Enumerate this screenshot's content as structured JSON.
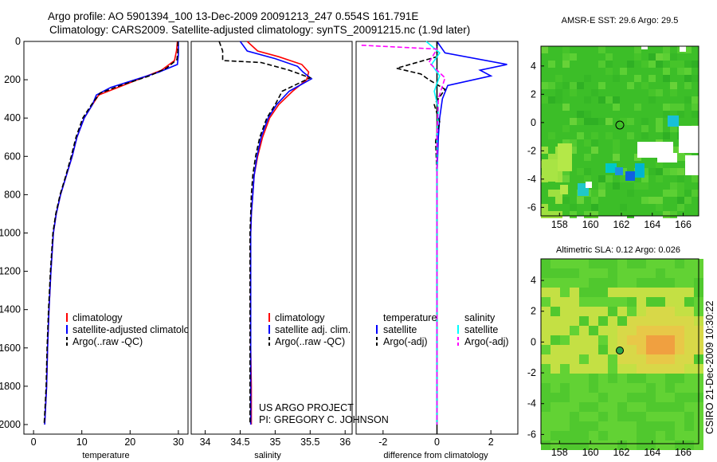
{
  "header": {
    "line1": "Argo profile: AO 5901394_100 13-Dec-2009 20091213_247 0.554S 161.791E",
    "line2": "Climatology: CARS2009. Satellite-adjusted climatology: synTS_20091215.nc (1.9d later)"
  },
  "side_label": "CSIRO 21-Dec-2009 10:30:22",
  "colors": {
    "climatology": "#ff0000",
    "satellite": "#0000ff",
    "argo": "#000000",
    "sal_satellite": "#00ffff",
    "sal_argo": "#ff00ff"
  },
  "chart_data": [
    {
      "type": "line",
      "name": "temperature-profile",
      "xlabel": "temperature",
      "ylabel": "",
      "xlim": [
        -2,
        32
      ],
      "ylim": [
        2050,
        0
      ],
      "xticks": [
        "0",
        "10",
        "20",
        "30"
      ],
      "xtick_values": [
        0,
        10,
        20,
        30
      ],
      "yticks": [
        "0",
        "200",
        "400",
        "600",
        "800",
        "1000",
        "1200",
        "1400",
        "1600",
        "1800",
        "2000"
      ],
      "ytick_values": [
        0,
        200,
        400,
        600,
        800,
        1000,
        1200,
        1400,
        1600,
        1800,
        2000
      ],
      "series": [
        {
          "name": "climatology",
          "style": "solid",
          "color": "#ff0000",
          "x": [
            29.8,
            29.6,
            29.2,
            26.5,
            22.5,
            17.5,
            13.5,
            12.2,
            10.5,
            9.0,
            8.0,
            6.8,
            5.6,
            4.7,
            4.1,
            3.6,
            3.2,
            2.9,
            2.7,
            2.5,
            2.3
          ],
          "y": [
            0,
            50,
            100,
            150,
            190,
            240,
            280,
            330,
            400,
            500,
            600,
            700,
            800,
            900,
            1000,
            1200,
            1400,
            1600,
            1800,
            1900,
            2000
          ]
        },
        {
          "name": "satellite-adjusted climatology",
          "style": "solid",
          "color": "#0000ff",
          "x": [
            30.0,
            30.0,
            29.8,
            26.0,
            21.0,
            16.0,
            13.0,
            12.2,
            10.5,
            9.0,
            8.0,
            6.8,
            5.6,
            4.7,
            4.1,
            3.6,
            3.2,
            2.9,
            2.7,
            2.5,
            2.3
          ],
          "y": [
            0,
            70,
            120,
            160,
            200,
            240,
            280,
            330,
            400,
            500,
            600,
            700,
            800,
            900,
            1000,
            1200,
            1400,
            1600,
            1800,
            1900,
            2000
          ]
        },
        {
          "name": "Argo(..raw -QC)",
          "style": "dashed",
          "color": "#000000",
          "x": [
            29.9,
            29.9,
            29.7,
            27.5,
            24.0,
            18.0,
            13.8,
            12.0,
            10.2,
            8.8,
            7.8,
            6.7,
            5.5,
            4.6,
            4.0,
            3.5,
            3.1,
            2.8,
            2.6,
            2.4,
            2.2
          ],
          "y": [
            0,
            50,
            95,
            140,
            180,
            230,
            270,
            330,
            400,
            500,
            600,
            700,
            800,
            900,
            1000,
            1200,
            1400,
            1600,
            1800,
            1900,
            2000
          ]
        }
      ],
      "legend": [
        "climatology",
        "satellite-adjusted climatology",
        "Argo(..raw -QC)"
      ]
    },
    {
      "type": "line",
      "name": "salinity-profile",
      "xlabel": "salinity",
      "xlim": [
        33.8,
        36.1
      ],
      "ylim": [
        2050,
        0
      ],
      "xticks": [
        "34",
        "34.5",
        "35",
        "35.5",
        "36"
      ],
      "xtick_values": [
        34,
        34.5,
        35,
        35.5,
        36
      ],
      "series": [
        {
          "name": "climatology",
          "style": "solid",
          "color": "#ff0000",
          "x": [
            34.6,
            34.75,
            35.05,
            35.38,
            35.48,
            35.45,
            35.25,
            35.05,
            34.92,
            34.82,
            34.75,
            34.7,
            34.68,
            34.66,
            34.65,
            34.65,
            34.65,
            34.65,
            34.66,
            34.66
          ],
          "y": [
            0,
            50,
            80,
            120,
            160,
            200,
            260,
            330,
            400,
            500,
            600,
            700,
            800,
            900,
            1000,
            1200,
            1400,
            1600,
            1800,
            2000
          ]
        },
        {
          "name": "satellite adj. clim.",
          "style": "solid",
          "color": "#0000ff",
          "x": [
            34.5,
            34.6,
            35.0,
            35.32,
            35.4,
            35.52,
            35.2,
            35.02,
            34.9,
            34.8,
            34.74,
            34.7,
            34.68,
            34.66,
            34.65,
            34.65,
            34.65,
            34.65,
            34.65,
            34.65
          ],
          "y": [
            0,
            50,
            90,
            130,
            160,
            195,
            260,
            330,
            400,
            500,
            600,
            700,
            800,
            900,
            1000,
            1200,
            1400,
            1600,
            1800,
            2000
          ]
        },
        {
          "name": "Argo(..raw -QC)",
          "style": "dashed",
          "color": "#000000",
          "x": [
            34.2,
            34.25,
            34.25,
            34.8,
            35.2,
            35.5,
            35.1,
            35.0,
            34.88,
            34.78,
            34.72,
            34.68,
            34.66,
            34.65,
            34.64,
            34.64,
            34.64,
            34.64,
            34.64,
            34.64
          ],
          "y": [
            0,
            50,
            100,
            110,
            150,
            190,
            260,
            330,
            400,
            500,
            600,
            700,
            800,
            900,
            1000,
            1200,
            1400,
            1600,
            1800,
            2000
          ]
        }
      ],
      "legend": [
        "climatology",
        "satellite adj. clim.",
        "Argo(..raw -QC)"
      ],
      "annotation": [
        "US ARGO PROJECT",
        "PI: GREGORY C. JOHNSON"
      ]
    },
    {
      "type": "line",
      "name": "difference-from-climatology",
      "xlabel": "difference from climatology",
      "xlim": [
        -3.0,
        3.0
      ],
      "ylim": [
        2050,
        0
      ],
      "xticks": [
        "-2",
        "0",
        "2"
      ],
      "xtick_values": [
        -2,
        0,
        2
      ],
      "series": [
        {
          "name": "temperature satellite",
          "style": "solid",
          "color": "#0000ff",
          "x": [
            0.0,
            0.3,
            2.6,
            1.6,
            2.0,
            0.4,
            0.2,
            0.1,
            0.05,
            0.0,
            0.0,
            0.0,
            0.0,
            0.0
          ],
          "y": [
            0,
            60,
            120,
            150,
            180,
            230,
            300,
            400,
            500,
            700,
            1000,
            1400,
            1800,
            2000
          ]
        },
        {
          "name": "temperature Argo(-adj)",
          "style": "dashed",
          "color": "#000000",
          "x": [
            0.0,
            0.0,
            -1.5,
            -0.6,
            -0.3,
            0.3,
            -0.1,
            0.1,
            -0.05,
            0.0,
            0.0,
            0.0,
            0.0
          ],
          "y": [
            0,
            80,
            140,
            170,
            200,
            250,
            330,
            420,
            520,
            700,
            1000,
            1500,
            2000
          ]
        },
        {
          "name": "salinity satellite",
          "style": "solid",
          "color": "#00ffff",
          "x": [
            -0.4,
            0.1,
            -0.2,
            0.1,
            -0.1,
            0.05,
            0.0,
            0.0,
            0.0,
            0.0,
            0.0
          ],
          "y": [
            0,
            60,
            120,
            180,
            260,
            350,
            500,
            800,
            1200,
            1600,
            2000
          ]
        },
        {
          "name": "salinity Argo(-adj)",
          "style": "dashed",
          "color": "#ff00ff",
          "x": [
            -2.8,
            0.0,
            -0.3,
            0.3,
            0.05,
            0.0,
            0.0,
            0.0,
            0.0
          ],
          "y": [
            20,
            40,
            110,
            190,
            300,
            500,
            1000,
            1500,
            2000
          ]
        }
      ],
      "legend": {
        "temperature_title": "temperature",
        "salinity_title": "salinity",
        "items": [
          "satellite",
          "Argo(-adj)",
          "satellite",
          "Argo(-adj)"
        ]
      }
    },
    {
      "type": "heatmap",
      "name": "amsr-sst-map",
      "title": "AMSR-E SST: 29.6 Argo: 29.5",
      "xlim": [
        156.8,
        167
      ],
      "ylim": [
        -6.6,
        5.4
      ],
      "xticks": [
        "158",
        "160",
        "162",
        "164",
        "166"
      ],
      "xtick_values": [
        158,
        160,
        162,
        164,
        166
      ],
      "yticks": [
        "-6",
        "-4",
        "-2",
        "0",
        "2",
        "4"
      ],
      "ytick_values": [
        -6,
        -4,
        -2,
        0,
        2,
        4
      ],
      "marker": {
        "lon": 161.791,
        "lat": -0.554
      }
    },
    {
      "type": "heatmap",
      "name": "altimetric-sla-map",
      "title": "Altimetric SLA: 0.12 Argo: 0.026",
      "xlim": [
        156.8,
        167
      ],
      "ylim": [
        -6.6,
        5.4
      ],
      "xticks": [
        "158",
        "160",
        "162",
        "164",
        "166"
      ],
      "xtick_values": [
        158,
        160,
        162,
        164,
        166
      ],
      "yticks": [
        "-6",
        "-4",
        "-2",
        "0",
        "2",
        "4"
      ],
      "ytick_values": [
        -6,
        -4,
        -2,
        0,
        2,
        4
      ],
      "marker": {
        "lon": 161.791,
        "lat": -0.554
      }
    }
  ]
}
